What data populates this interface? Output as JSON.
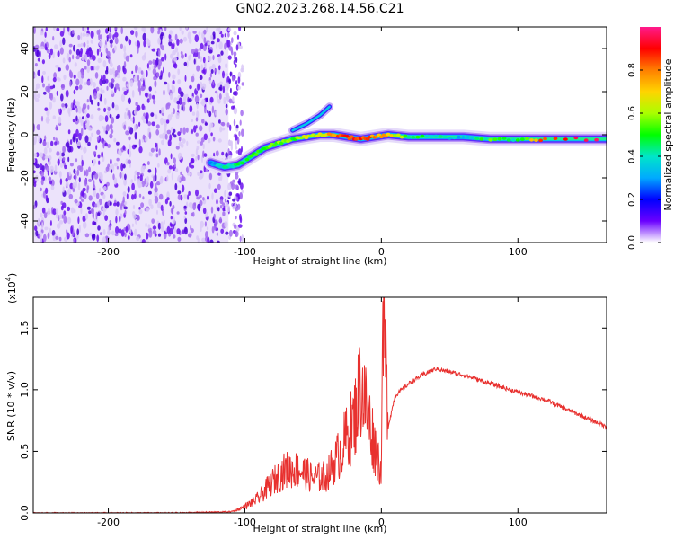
{
  "figure_title": "GN02.2023.268.14.56.C21",
  "chart_data": [
    {
      "type": "heatmap",
      "title": "GN02.2023.268.14.56.C21",
      "xlabel": "Height of straight line (km)",
      "ylabel": "Frequency (Hz)",
      "xlim": [
        -255,
        165
      ],
      "ylim": [
        -50,
        50
      ],
      "xticks": [
        -200,
        -100,
        0,
        100
      ],
      "yticks": [
        -40,
        -20,
        0,
        20,
        40
      ],
      "xtick_labels": [
        "-200",
        "-100",
        "0",
        "100"
      ],
      "ytick_labels": [
        "-40",
        "-20",
        "0",
        "20",
        "40"
      ],
      "colorbar": {
        "label": "Normalized spectral amplitude",
        "range": [
          0.0,
          1.0
        ],
        "ticks": [
          0.0,
          0.2,
          0.4,
          0.6,
          0.8
        ],
        "tick_labels": [
          "0.0",
          "0.2",
          "0.4",
          "0.6",
          "0.8"
        ],
        "stops": [
          "#ffffff",
          "#6a00ff",
          "#0000ff",
          "#00aaff",
          "#00e6c8",
          "#00ff00",
          "#aaff00",
          "#ffd400",
          "#ff7f00",
          "#ff0000",
          "#ff1a8c"
        ]
      },
      "noise_region_x": [
        -255,
        -112
      ],
      "ridge": {
        "x": [
          -125,
          -115,
          -105,
          -95,
          -85,
          -75,
          -65,
          -55,
          -45,
          -35,
          -25,
          -15,
          -5,
          5,
          20,
          40,
          60,
          80,
          100,
          120,
          165
        ],
        "freq": [
          -13,
          -15,
          -14,
          -10,
          -6,
          -4,
          -2,
          -1,
          0,
          0,
          -1,
          -2,
          -1,
          0,
          -1,
          -1,
          -1,
          -2,
          -2,
          -2,
          -2
        ],
        "amplitude": [
          0.3,
          0.4,
          0.45,
          0.5,
          0.5,
          0.55,
          0.55,
          0.6,
          0.6,
          0.8,
          0.85,
          0.9,
          0.75,
          0.7,
          0.5,
          0.4,
          0.35,
          0.5,
          0.45,
          0.9,
          0.95
        ]
      },
      "branch": {
        "x": [
          -65,
          -55,
          -45,
          -38
        ],
        "freq": [
          2,
          5,
          9,
          13
        ]
      }
    },
    {
      "type": "line",
      "xlabel": "Height of straight line (km)",
      "ylabel": "SNR (10 * v/v)",
      "multiplier_label": "(x10",
      "multiplier_exp": "4",
      "multiplier_close": ")",
      "xlim": [
        -255,
        165
      ],
      "ylim": [
        0,
        1.75
      ],
      "xticks": [
        -200,
        -100,
        0,
        100
      ],
      "xtick_labels": [
        "-200",
        "-100",
        "0",
        "100"
      ],
      "yticks": [
        0.0,
        0.5,
        1.0,
        1.5
      ],
      "ytick_labels": [
        "0.0",
        "0.5",
        "1.0",
        "1.5"
      ],
      "series": [
        {
          "name": "SNR",
          "color": "#e8312f",
          "x": [
            -255,
            -150,
            -110,
            -100,
            -90,
            -80,
            -70,
            -60,
            -50,
            -40,
            -30,
            -20,
            -15,
            -10,
            -5,
            0,
            1,
            5,
            10,
            20,
            30,
            40,
            60,
            80,
            100,
            120,
            140,
            165
          ],
          "y": [
            0.0,
            0.0,
            0.01,
            0.05,
            0.12,
            0.25,
            0.35,
            0.35,
            0.28,
            0.3,
            0.5,
            0.75,
            1.05,
            0.8,
            0.55,
            0.35,
            1.74,
            0.7,
            0.95,
            1.05,
            1.12,
            1.17,
            1.12,
            1.05,
            0.98,
            0.92,
            0.82,
            0.7
          ]
        }
      ]
    }
  ]
}
